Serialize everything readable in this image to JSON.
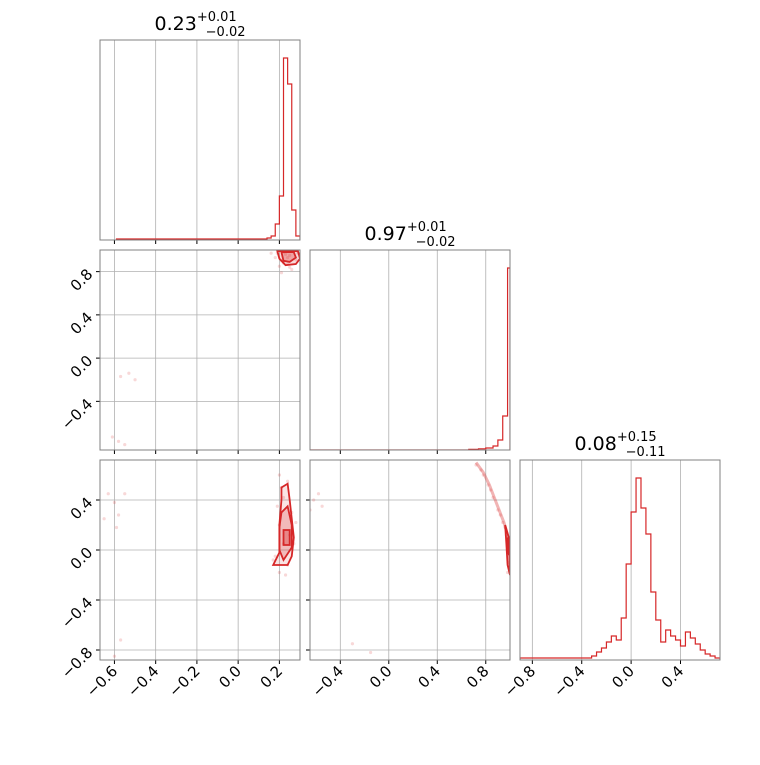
{
  "chart_data": {
    "type": "corner",
    "color": "#d62728",
    "grid": true,
    "panels": {
      "hist_p0": {
        "kind": "hist",
        "title": {
          "median": "0.23",
          "plus": "+0.01",
          "minus": "−0.02"
        },
        "xlim": [
          -0.67,
          0.3
        ],
        "ylim": [
          0,
          1.0
        ],
        "bins": [
          {
            "x0": -0.59,
            "x1": -0.55,
            "h": 0.005
          },
          {
            "x0": 0.12,
            "x1": 0.14,
            "h": 0.005
          },
          {
            "x0": 0.14,
            "x1": 0.16,
            "h": 0.01
          },
          {
            "x0": 0.16,
            "x1": 0.18,
            "h": 0.02
          },
          {
            "x0": 0.18,
            "x1": 0.2,
            "h": 0.08
          },
          {
            "x0": 0.2,
            "x1": 0.22,
            "h": 0.22
          },
          {
            "x0": 0.22,
            "x1": 0.24,
            "h": 0.91
          },
          {
            "x0": 0.24,
            "x1": 0.26,
            "h": 0.78
          },
          {
            "x0": 0.26,
            "x1": 0.28,
            "h": 0.15
          },
          {
            "x0": 0.28,
            "x1": 0.3,
            "h": 0.02
          }
        ]
      },
      "hist_p1": {
        "kind": "hist",
        "title": {
          "median": "0.97",
          "plus": "+0.01",
          "minus": "−0.02"
        },
        "xlim": [
          -0.65,
          1.0
        ],
        "ylim": [
          0,
          1.0
        ],
        "bins": [
          {
            "x0": -0.65,
            "x1": 0.66,
            "h": 0.0
          },
          {
            "x0": 0.66,
            "x1": 0.74,
            "h": 0.003
          },
          {
            "x0": 0.74,
            "x1": 0.8,
            "h": 0.006
          },
          {
            "x0": 0.8,
            "x1": 0.86,
            "h": 0.01
          },
          {
            "x0": 0.86,
            "x1": 0.9,
            "h": 0.02
          },
          {
            "x0": 0.9,
            "x1": 0.94,
            "h": 0.05
          },
          {
            "x0": 0.94,
            "x1": 0.98,
            "h": 0.17
          },
          {
            "x0": 0.98,
            "x1": 1.0,
            "h": 0.91
          }
        ]
      },
      "hist_p2": {
        "kind": "hist",
        "title": {
          "median": "0.08",
          "plus": "+0.15",
          "minus": "−0.11"
        },
        "xlim": [
          -0.9,
          0.72
        ],
        "ylim": [
          0,
          1.0
        ],
        "bins": [
          {
            "x0": -0.9,
            "x1": -0.84,
            "h": 0.01
          },
          {
            "x0": -0.78,
            "x1": -0.74,
            "h": 0.01
          },
          {
            "x0": -0.36,
            "x1": -0.32,
            "h": 0.01
          },
          {
            "x0": -0.32,
            "x1": -0.28,
            "h": 0.02
          },
          {
            "x0": -0.28,
            "x1": -0.24,
            "h": 0.04
          },
          {
            "x0": -0.24,
            "x1": -0.2,
            "h": 0.06
          },
          {
            "x0": -0.2,
            "x1": -0.16,
            "h": 0.09
          },
          {
            "x0": -0.16,
            "x1": -0.12,
            "h": 0.12
          },
          {
            "x0": -0.12,
            "x1": -0.08,
            "h": 0.1
          },
          {
            "x0": -0.08,
            "x1": -0.04,
            "h": 0.21
          },
          {
            "x0": -0.04,
            "x1": 0.0,
            "h": 0.48
          },
          {
            "x0": 0.0,
            "x1": 0.04,
            "h": 0.74
          },
          {
            "x0": 0.04,
            "x1": 0.08,
            "h": 0.91
          },
          {
            "x0": 0.08,
            "x1": 0.12,
            "h": 0.76
          },
          {
            "x0": 0.12,
            "x1": 0.16,
            "h": 0.63
          },
          {
            "x0": 0.16,
            "x1": 0.2,
            "h": 0.34
          },
          {
            "x0": 0.2,
            "x1": 0.24,
            "h": 0.2
          },
          {
            "x0": 0.24,
            "x1": 0.28,
            "h": 0.09
          },
          {
            "x0": 0.28,
            "x1": 0.32,
            "h": 0.15
          },
          {
            "x0": 0.32,
            "x1": 0.36,
            "h": 0.12
          },
          {
            "x0": 0.36,
            "x1": 0.4,
            "h": 0.1
          },
          {
            "x0": 0.4,
            "x1": 0.44,
            "h": 0.07
          },
          {
            "x0": 0.44,
            "x1": 0.48,
            "h": 0.14
          },
          {
            "x0": 0.48,
            "x1": 0.52,
            "h": 0.11
          },
          {
            "x0": 0.52,
            "x1": 0.56,
            "h": 0.08
          },
          {
            "x0": 0.56,
            "x1": 0.6,
            "h": 0.05
          },
          {
            "x0": 0.6,
            "x1": 0.64,
            "h": 0.03
          },
          {
            "x0": 0.64,
            "x1": 0.68,
            "h": 0.02
          },
          {
            "x0": 0.68,
            "x1": 0.72,
            "h": 0.01
          }
        ]
      },
      "scatter_p1_vs_p0": {
        "kind": "2d",
        "xlim": [
          -0.67,
          0.3
        ],
        "ylim": [
          -0.85,
          1.0
        ],
        "samples": [
          [
            0.22,
            0.98
          ],
          [
            0.25,
            0.95
          ],
          [
            0.21,
            0.9
          ],
          [
            0.27,
            0.99
          ],
          [
            0.18,
            0.93
          ],
          [
            0.24,
            0.87
          ],
          [
            0.2,
            0.85
          ],
          [
            0.26,
            0.82
          ],
          [
            0.23,
            0.96
          ],
          [
            0.19,
            0.97
          ],
          [
            0.28,
            0.91
          ],
          [
            0.22,
            0.88
          ],
          [
            0.25,
            0.84
          ],
          [
            0.21,
            0.79
          ],
          [
            0.24,
            0.93
          ],
          [
            0.16,
            0.97
          ],
          [
            0.29,
            0.97
          ],
          [
            -0.57,
            -0.17
          ],
          [
            -0.5,
            -0.2
          ],
          [
            -0.53,
            -0.14
          ],
          [
            -0.58,
            -0.77
          ],
          [
            -0.55,
            -0.8
          ],
          [
            -0.61,
            -0.73
          ]
        ],
        "contour_levels": [
          {
            "fill": 0.35,
            "points": [
              [
                0.19,
                0.99
              ],
              [
                0.29,
                0.99
              ],
              [
                0.3,
                0.92
              ],
              [
                0.28,
                0.87
              ],
              [
                0.23,
                0.86
              ],
              [
                0.2,
                0.92
              ]
            ]
          },
          {
            "fill": 0.6,
            "points": [
              [
                0.21,
                0.98
              ],
              [
                0.27,
                0.98
              ],
              [
                0.28,
                0.93
              ],
              [
                0.25,
                0.89
              ],
              [
                0.22,
                0.9
              ]
            ]
          }
        ]
      },
      "scatter_p2_vs_p0": {
        "kind": "2d",
        "xlim": [
          -0.67,
          0.3
        ],
        "ylim": [
          -0.88,
          0.72
        ],
        "samples": [
          [
            0.2,
            0.6
          ],
          [
            0.24,
            0.55
          ],
          [
            0.22,
            0.42
          ],
          [
            0.26,
            0.3
          ],
          [
            0.2,
            0.2
          ],
          [
            0.25,
            0.12
          ],
          [
            0.22,
            0.05
          ],
          [
            0.18,
            -0.05
          ],
          [
            0.24,
            -0.12
          ],
          [
            0.2,
            -0.18
          ],
          [
            0.17,
            -0.08
          ],
          [
            0.27,
            0.05
          ],
          [
            0.21,
            0.5
          ],
          [
            0.23,
            -0.2
          ],
          [
            0.19,
            0.35
          ],
          [
            0.28,
            0.22
          ],
          [
            -0.63,
            0.45
          ],
          [
            -0.6,
            0.38
          ],
          [
            -0.58,
            0.28
          ],
          [
            -0.65,
            0.25
          ],
          [
            -0.59,
            0.18
          ],
          [
            -0.55,
            0.45
          ],
          [
            -0.57,
            -0.72
          ],
          [
            -0.6,
            -0.85
          ]
        ],
        "contour_levels": [
          {
            "fill": 0.25,
            "points": [
              [
                0.21,
                0.5
              ],
              [
                0.24,
                0.53
              ],
              [
                0.25,
                0.4
              ],
              [
                0.26,
                0.25
              ],
              [
                0.27,
                0.1
              ],
              [
                0.26,
                -0.05
              ],
              [
                0.24,
                -0.12
              ],
              [
                0.17,
                -0.12
              ],
              [
                0.2,
                -0.02
              ],
              [
                0.2,
                0.2
              ],
              [
                0.21,
                0.4
              ]
            ]
          },
          {
            "fill": 0.45,
            "points": [
              [
                0.21,
                0.3
              ],
              [
                0.24,
                0.35
              ],
              [
                0.26,
                0.2
              ],
              [
                0.26,
                0.02
              ],
              [
                0.22,
                -0.08
              ],
              [
                0.2,
                0.0
              ],
              [
                0.2,
                0.18
              ]
            ]
          },
          {
            "fill": 0.7,
            "points": [
              [
                0.22,
                0.16
              ],
              [
                0.25,
                0.16
              ],
              [
                0.25,
                0.04
              ],
              [
                0.22,
                0.04
              ]
            ]
          }
        ]
      },
      "scatter_p2_vs_p1": {
        "kind": "2d",
        "xlim": [
          -0.65,
          1.0
        ],
        "ylim": [
          -0.88,
          0.72
        ],
        "samples": [
          [
            0.72,
            0.68
          ],
          [
            0.78,
            0.6
          ],
          [
            0.82,
            0.52
          ],
          [
            0.86,
            0.42
          ],
          [
            0.9,
            0.32
          ],
          [
            0.94,
            0.22
          ],
          [
            0.97,
            0.12
          ],
          [
            0.99,
            0.02
          ],
          [
            0.99,
            -0.1
          ],
          [
            0.98,
            -0.18
          ],
          [
            0.76,
            0.64
          ],
          [
            0.84,
            0.48
          ],
          [
            0.92,
            0.28
          ],
          [
            0.96,
            0.18
          ],
          [
            -0.62,
            0.4
          ],
          [
            -0.58,
            0.45
          ],
          [
            -0.65,
            0.32
          ],
          [
            -0.55,
            0.35
          ],
          [
            -0.3,
            -0.75
          ],
          [
            -0.15,
            -0.82
          ]
        ],
        "contour_levels": [
          {
            "fill": 0.25,
            "points": [
              [
                0.96,
                0.2
              ],
              [
                0.99,
                0.1
              ],
              [
                1.0,
                -0.2
              ],
              [
                0.98,
                -0.12
              ],
              [
                0.97,
                0.05
              ]
            ]
          },
          {
            "fill": 0.5,
            "points": [
              [
                0.98,
                0.1
              ],
              [
                1.0,
                0.05
              ],
              [
                1.0,
                -0.05
              ],
              [
                0.98,
                -0.02
              ]
            ]
          }
        ],
        "ridge": [
          [
            0.72,
            0.7
          ],
          [
            0.78,
            0.62
          ],
          [
            0.83,
            0.52
          ],
          [
            0.87,
            0.42
          ],
          [
            0.91,
            0.32
          ],
          [
            0.95,
            0.22
          ],
          [
            0.98,
            0.12
          ],
          [
            0.99,
            0.02
          ]
        ]
      }
    },
    "ticks": {
      "col0_x": [
        "−0.6",
        "−0.4",
        "−0.2",
        "0.0",
        "0.2"
      ],
      "col0_x_values": [
        -0.6,
        -0.4,
        -0.2,
        0.0,
        0.2
      ],
      "col1_x": [
        "−0.4",
        "0.0",
        "0.4",
        "0.8"
      ],
      "col1_x_values": [
        -0.4,
        0.0,
        0.4,
        0.8
      ],
      "col2_x": [
        "−0.8",
        "−0.4",
        "0.0",
        "0.4"
      ],
      "col2_x_values": [
        -0.8,
        -0.4,
        0.0,
        0.4
      ],
      "row1_y": [
        "0.8",
        "0.4",
        "0.0",
        "−0.4"
      ],
      "row1_y_values": [
        0.8,
        0.4,
        0.0,
        -0.4
      ],
      "row2_y": [
        "0.4",
        "0.0",
        "−0.4",
        "−0.8"
      ],
      "row2_y_values": [
        0.4,
        0.0,
        -0.4,
        -0.8
      ]
    }
  }
}
